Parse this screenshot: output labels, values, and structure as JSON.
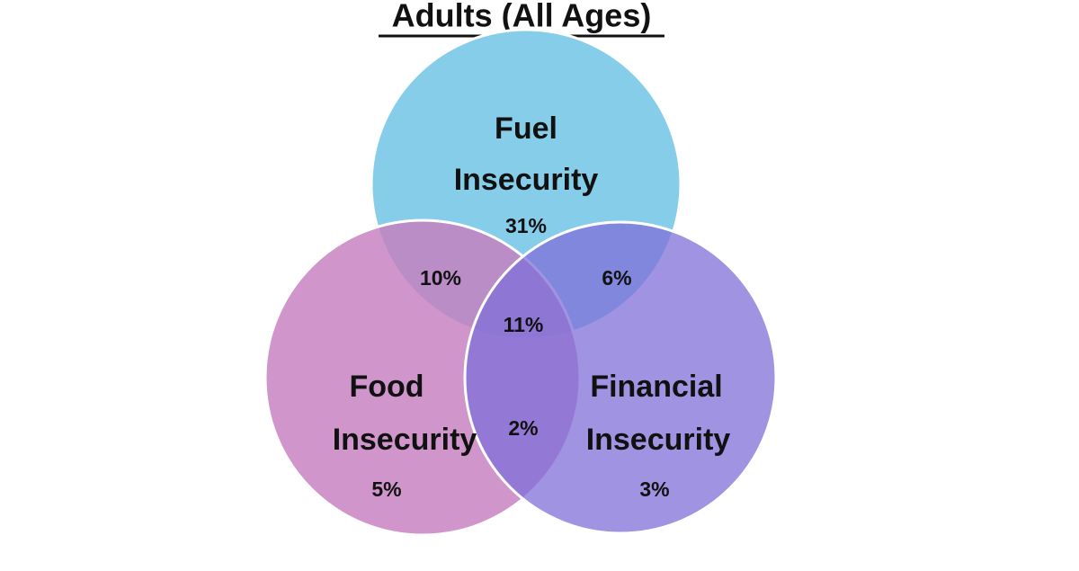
{
  "title": "Adults (All Ages)",
  "sets": [
    {
      "label_lines": [
        "Fuel",
        "Insecurity"
      ],
      "value": "31%"
    },
    {
      "label_lines": [
        "Food",
        "Insecurity"
      ],
      "value": "5%"
    },
    {
      "label_lines": [
        "Financial",
        "Insecurity"
      ],
      "value": "3%"
    }
  ],
  "intersections": {
    "fuel_food": "10%",
    "fuel_financial": "6%",
    "food_financial": "2%",
    "all": "11%"
  }
}
